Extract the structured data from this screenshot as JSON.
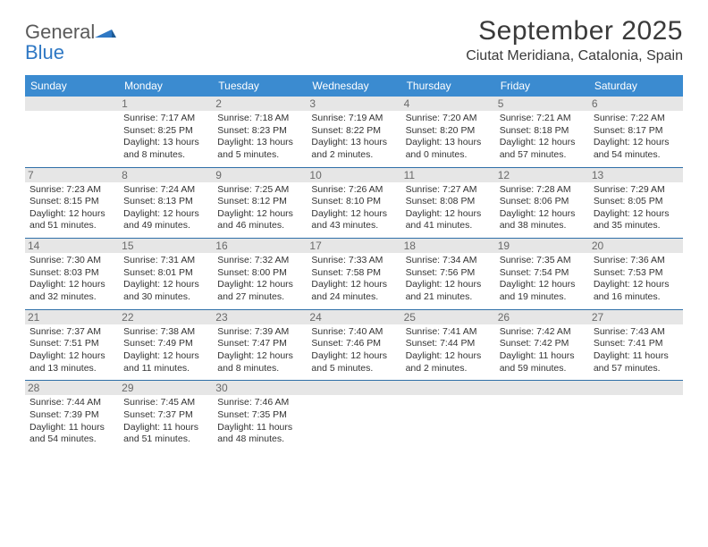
{
  "brand": {
    "word1": "General",
    "word2": "Blue"
  },
  "title": "September 2025",
  "location": "Ciutat Meridiana, Catalonia, Spain",
  "colors": {
    "header_bar": "#3b8bd0",
    "week_divider": "#2f6fa8",
    "daynum_bg": "#e6e6e6",
    "brand_blue": "#2f78c4",
    "text": "#333333"
  },
  "dow": [
    "Sunday",
    "Monday",
    "Tuesday",
    "Wednesday",
    "Thursday",
    "Friday",
    "Saturday"
  ],
  "weeks": [
    [
      {
        "n": "",
        "sunrise": "",
        "sunset": "",
        "daylight": ""
      },
      {
        "n": "1",
        "sunrise": "Sunrise: 7:17 AM",
        "sunset": "Sunset: 8:25 PM",
        "daylight": "Daylight: 13 hours and 8 minutes."
      },
      {
        "n": "2",
        "sunrise": "Sunrise: 7:18 AM",
        "sunset": "Sunset: 8:23 PM",
        "daylight": "Daylight: 13 hours and 5 minutes."
      },
      {
        "n": "3",
        "sunrise": "Sunrise: 7:19 AM",
        "sunset": "Sunset: 8:22 PM",
        "daylight": "Daylight: 13 hours and 2 minutes."
      },
      {
        "n": "4",
        "sunrise": "Sunrise: 7:20 AM",
        "sunset": "Sunset: 8:20 PM",
        "daylight": "Daylight: 13 hours and 0 minutes."
      },
      {
        "n": "5",
        "sunrise": "Sunrise: 7:21 AM",
        "sunset": "Sunset: 8:18 PM",
        "daylight": "Daylight: 12 hours and 57 minutes."
      },
      {
        "n": "6",
        "sunrise": "Sunrise: 7:22 AM",
        "sunset": "Sunset: 8:17 PM",
        "daylight": "Daylight: 12 hours and 54 minutes."
      }
    ],
    [
      {
        "n": "7",
        "sunrise": "Sunrise: 7:23 AM",
        "sunset": "Sunset: 8:15 PM",
        "daylight": "Daylight: 12 hours and 51 minutes."
      },
      {
        "n": "8",
        "sunrise": "Sunrise: 7:24 AM",
        "sunset": "Sunset: 8:13 PM",
        "daylight": "Daylight: 12 hours and 49 minutes."
      },
      {
        "n": "9",
        "sunrise": "Sunrise: 7:25 AM",
        "sunset": "Sunset: 8:12 PM",
        "daylight": "Daylight: 12 hours and 46 minutes."
      },
      {
        "n": "10",
        "sunrise": "Sunrise: 7:26 AM",
        "sunset": "Sunset: 8:10 PM",
        "daylight": "Daylight: 12 hours and 43 minutes."
      },
      {
        "n": "11",
        "sunrise": "Sunrise: 7:27 AM",
        "sunset": "Sunset: 8:08 PM",
        "daylight": "Daylight: 12 hours and 41 minutes."
      },
      {
        "n": "12",
        "sunrise": "Sunrise: 7:28 AM",
        "sunset": "Sunset: 8:06 PM",
        "daylight": "Daylight: 12 hours and 38 minutes."
      },
      {
        "n": "13",
        "sunrise": "Sunrise: 7:29 AM",
        "sunset": "Sunset: 8:05 PM",
        "daylight": "Daylight: 12 hours and 35 minutes."
      }
    ],
    [
      {
        "n": "14",
        "sunrise": "Sunrise: 7:30 AM",
        "sunset": "Sunset: 8:03 PM",
        "daylight": "Daylight: 12 hours and 32 minutes."
      },
      {
        "n": "15",
        "sunrise": "Sunrise: 7:31 AM",
        "sunset": "Sunset: 8:01 PM",
        "daylight": "Daylight: 12 hours and 30 minutes."
      },
      {
        "n": "16",
        "sunrise": "Sunrise: 7:32 AM",
        "sunset": "Sunset: 8:00 PM",
        "daylight": "Daylight: 12 hours and 27 minutes."
      },
      {
        "n": "17",
        "sunrise": "Sunrise: 7:33 AM",
        "sunset": "Sunset: 7:58 PM",
        "daylight": "Daylight: 12 hours and 24 minutes."
      },
      {
        "n": "18",
        "sunrise": "Sunrise: 7:34 AM",
        "sunset": "Sunset: 7:56 PM",
        "daylight": "Daylight: 12 hours and 21 minutes."
      },
      {
        "n": "19",
        "sunrise": "Sunrise: 7:35 AM",
        "sunset": "Sunset: 7:54 PM",
        "daylight": "Daylight: 12 hours and 19 minutes."
      },
      {
        "n": "20",
        "sunrise": "Sunrise: 7:36 AM",
        "sunset": "Sunset: 7:53 PM",
        "daylight": "Daylight: 12 hours and 16 minutes."
      }
    ],
    [
      {
        "n": "21",
        "sunrise": "Sunrise: 7:37 AM",
        "sunset": "Sunset: 7:51 PM",
        "daylight": "Daylight: 12 hours and 13 minutes."
      },
      {
        "n": "22",
        "sunrise": "Sunrise: 7:38 AM",
        "sunset": "Sunset: 7:49 PM",
        "daylight": "Daylight: 12 hours and 11 minutes."
      },
      {
        "n": "23",
        "sunrise": "Sunrise: 7:39 AM",
        "sunset": "Sunset: 7:47 PM",
        "daylight": "Daylight: 12 hours and 8 minutes."
      },
      {
        "n": "24",
        "sunrise": "Sunrise: 7:40 AM",
        "sunset": "Sunset: 7:46 PM",
        "daylight": "Daylight: 12 hours and 5 minutes."
      },
      {
        "n": "25",
        "sunrise": "Sunrise: 7:41 AM",
        "sunset": "Sunset: 7:44 PM",
        "daylight": "Daylight: 12 hours and 2 minutes."
      },
      {
        "n": "26",
        "sunrise": "Sunrise: 7:42 AM",
        "sunset": "Sunset: 7:42 PM",
        "daylight": "Daylight: 11 hours and 59 minutes."
      },
      {
        "n": "27",
        "sunrise": "Sunrise: 7:43 AM",
        "sunset": "Sunset: 7:41 PM",
        "daylight": "Daylight: 11 hours and 57 minutes."
      }
    ],
    [
      {
        "n": "28",
        "sunrise": "Sunrise: 7:44 AM",
        "sunset": "Sunset: 7:39 PM",
        "daylight": "Daylight: 11 hours and 54 minutes."
      },
      {
        "n": "29",
        "sunrise": "Sunrise: 7:45 AM",
        "sunset": "Sunset: 7:37 PM",
        "daylight": "Daylight: 11 hours and 51 minutes."
      },
      {
        "n": "30",
        "sunrise": "Sunrise: 7:46 AM",
        "sunset": "Sunset: 7:35 PM",
        "daylight": "Daylight: 11 hours and 48 minutes."
      },
      {
        "n": "",
        "sunrise": "",
        "sunset": "",
        "daylight": ""
      },
      {
        "n": "",
        "sunrise": "",
        "sunset": "",
        "daylight": ""
      },
      {
        "n": "",
        "sunrise": "",
        "sunset": "",
        "daylight": ""
      },
      {
        "n": "",
        "sunrise": "",
        "sunset": "",
        "daylight": ""
      }
    ]
  ]
}
